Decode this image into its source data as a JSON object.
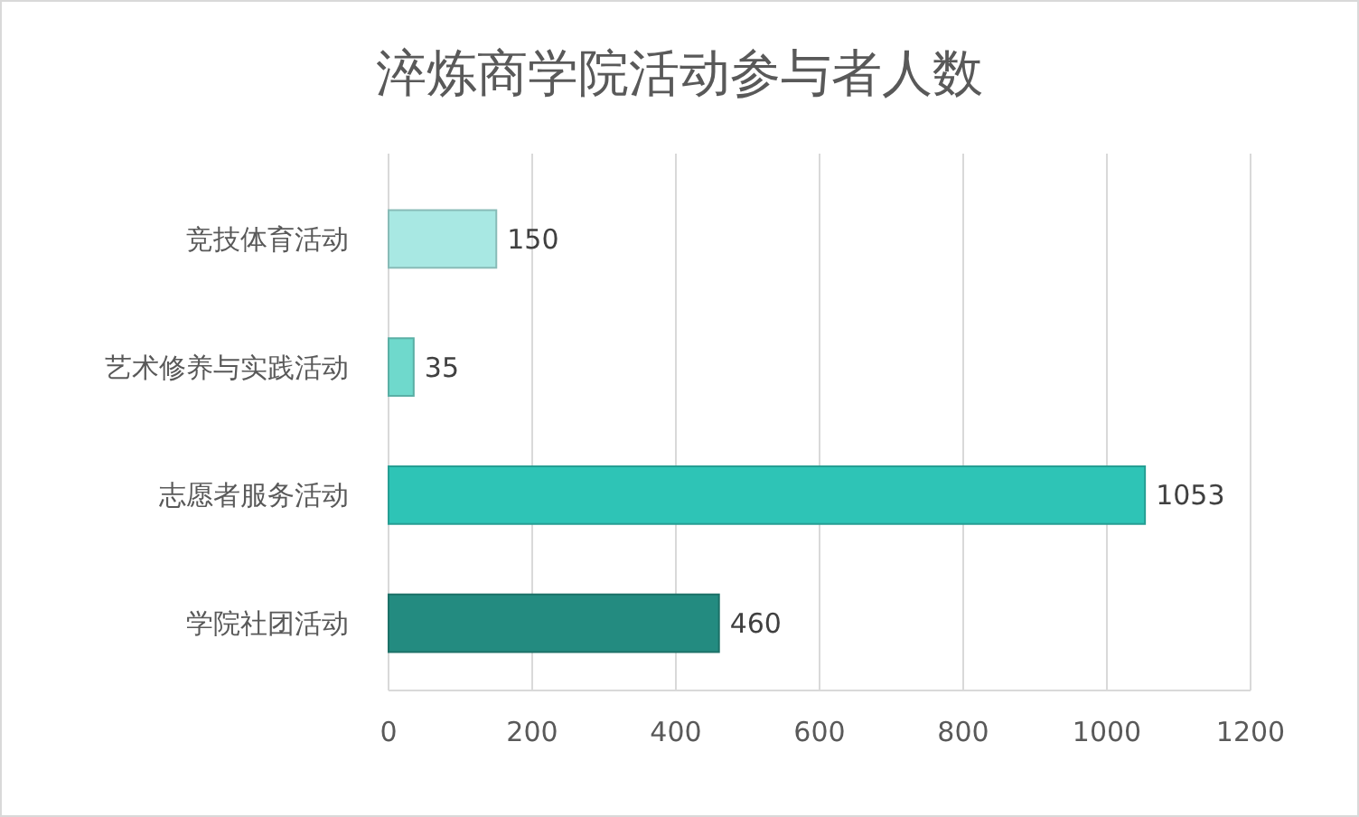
{
  "chart_data": {
    "type": "bar",
    "orientation": "horizontal",
    "title": "淬炼商学院活动参与者人数",
    "categories": [
      "竞技体育活动",
      "艺术修养与实践活动",
      "志愿者服务活动",
      "学院社团活动"
    ],
    "values": [
      150,
      35,
      1053,
      460
    ],
    "colors": [
      "#a8e8e3",
      "#6fd9cc",
      "#2ec4b6",
      "#238b80"
    ],
    "xlim": [
      0,
      1200
    ],
    "xticks": [
      0,
      200,
      400,
      600,
      800,
      1000,
      1200
    ],
    "grid": "x",
    "data_labels": true
  }
}
